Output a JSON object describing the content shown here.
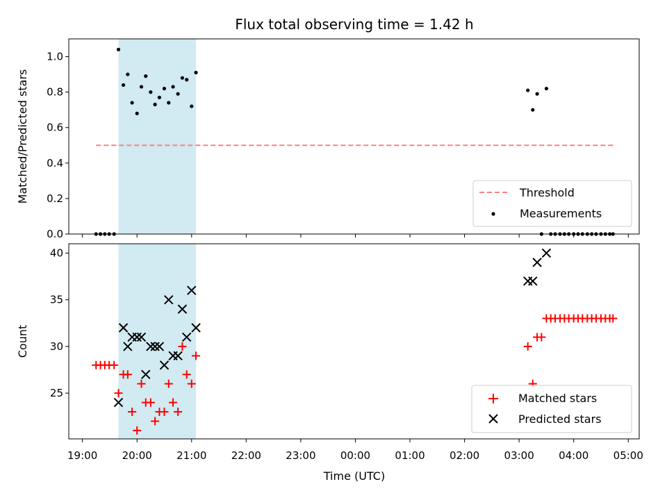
{
  "chart_data": {
    "title": "Flux total observing time = 1.42 h",
    "xlabel": "Time (UTC)",
    "x_unit": "hours UTC on a continuous night axis (24 = 00:00 of the next day)",
    "xlim": [
      18.75,
      29.2
    ],
    "xticks": [
      {
        "value": 19,
        "label": "19:00"
      },
      {
        "value": 20,
        "label": "20:00"
      },
      {
        "value": 21,
        "label": "21:00"
      },
      {
        "value": 22,
        "label": "22:00"
      },
      {
        "value": 23,
        "label": "23:00"
      },
      {
        "value": 24,
        "label": "00:00"
      },
      {
        "value": 25,
        "label": "01:00"
      },
      {
        "value": 26,
        "label": "02:00"
      },
      {
        "value": 27,
        "label": "03:00"
      },
      {
        "value": 28,
        "label": "04:00"
      },
      {
        "value": 29,
        "label": "05:00"
      }
    ],
    "shaded_span": {
      "x_start": 19.66,
      "x_end": 21.08,
      "color": "#add8e6"
    },
    "panels": [
      {
        "type": "scatter",
        "ylabel": "Matched/Predicted stars",
        "ylim": [
          0,
          1.1
        ],
        "yticks": [
          "0.0",
          "0.2",
          "0.4",
          "0.6",
          "0.8",
          "1.0"
        ],
        "yvalues": [
          0,
          0.2,
          0.4,
          0.6,
          0.8,
          1.0
        ],
        "legend_position": "lower right",
        "series": [
          {
            "name": "Threshold",
            "kind": "dashed-line",
            "color": "#ff7f7f",
            "x": [
              19.25,
              28.72
            ],
            "y": [
              0.5,
              0.5
            ]
          },
          {
            "name": "Measurements",
            "kind": "dot",
            "color": "#000000",
            "x": [
              19.25,
              19.33,
              19.41,
              19.49,
              19.58,
              19.66,
              19.75,
              19.83,
              19.91,
              20.0,
              20.08,
              20.16,
              20.25,
              20.33,
              20.41,
              20.5,
              20.58,
              20.66,
              20.75,
              20.83,
              20.91,
              21.0,
              21.08,
              27.16,
              27.25,
              27.33,
              27.5,
              27.41,
              27.58,
              27.66,
              27.75,
              27.83,
              27.91,
              28.0,
              28.08,
              28.16,
              28.25,
              28.33,
              28.41,
              28.5,
              28.58,
              28.66,
              28.72
            ],
            "y": [
              0,
              0,
              0,
              0,
              0,
              1.04,
              0.84,
              0.9,
              0.74,
              0.68,
              0.83,
              0.89,
              0.8,
              0.73,
              0.77,
              0.82,
              0.74,
              0.83,
              0.79,
              0.88,
              0.87,
              0.72,
              0.91,
              0.81,
              0.7,
              0.79,
              0.82,
              0,
              0,
              0,
              0,
              0,
              0,
              0,
              0,
              0,
              0,
              0,
              0,
              0,
              0,
              0,
              0
            ]
          }
        ]
      },
      {
        "type": "scatter",
        "ylabel": "Count",
        "ylim": [
          20.1,
          41.0
        ],
        "yticks": [
          "25",
          "30",
          "35",
          "40"
        ],
        "yvalues": [
          25,
          30,
          35,
          40
        ],
        "legend_position": "lower right",
        "series": [
          {
            "name": "Matched stars",
            "kind": "plus",
            "color": "#ff0000",
            "x": [
              19.25,
              19.33,
              19.41,
              19.49,
              19.58,
              19.66,
              19.75,
              19.83,
              19.91,
              20.0,
              20.08,
              20.16,
              20.25,
              20.33,
              20.41,
              20.5,
              20.58,
              20.66,
              20.75,
              20.83,
              20.91,
              21.0,
              21.08,
              27.16,
              27.25,
              27.33,
              27.41,
              27.5,
              27.58,
              27.66,
              27.75,
              27.83,
              27.91,
              28.0,
              28.08,
              28.16,
              28.25,
              28.33,
              28.41,
              28.5,
              28.58,
              28.66,
              28.72
            ],
            "y": [
              28,
              28,
              28,
              28,
              28,
              25,
              27,
              27,
              23,
              21,
              26,
              24,
              24,
              22,
              23,
              23,
              26,
              24,
              23,
              30,
              27,
              26,
              29,
              30,
              26,
              31,
              31,
              33,
              33,
              33,
              33,
              33,
              33,
              33,
              33,
              33,
              33,
              33,
              33,
              33,
              33,
              33,
              33
            ]
          },
          {
            "name": "Predicted stars",
            "kind": "x",
            "color": "#000000",
            "x": [
              19.66,
              19.75,
              19.83,
              19.91,
              20.0,
              20.08,
              20.16,
              20.25,
              20.33,
              20.41,
              20.5,
              20.58,
              20.66,
              20.75,
              20.83,
              20.91,
              21.0,
              21.08,
              27.16,
              27.25,
              27.33,
              27.5
            ],
            "y": [
              24,
              32,
              30,
              31,
              31,
              31,
              27,
              30,
              30,
              30,
              28,
              35,
              29,
              29,
              34,
              31,
              36,
              32,
              37,
              37,
              39,
              40
            ]
          }
        ]
      }
    ]
  }
}
